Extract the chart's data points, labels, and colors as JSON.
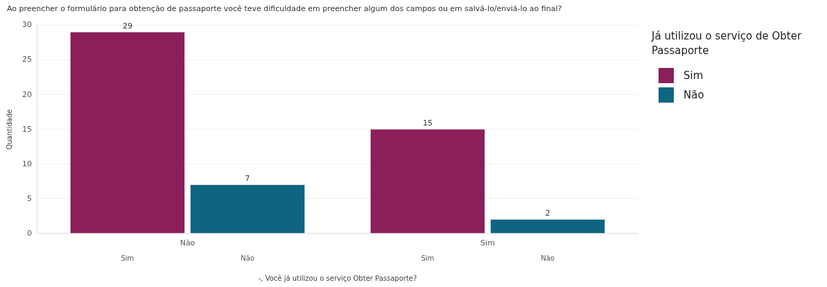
{
  "chart_data": {
    "type": "bar",
    "title": "Ao preencher o formulário para obtenção de passaporte você teve dificuldade em preencher algum dos campos ou em salvá-lo/enviá-lo ao final?",
    "xlabel": "-, Você já utilizou o serviço Obter Passaporte?",
    "ylabel": "Quantidade",
    "legend_title": "Já utilizou o serviço de Obter Passaporte",
    "categories": [
      "Não",
      "Sim"
    ],
    "series": [
      {
        "name": "Sim",
        "color": "#8a1f5a",
        "values": [
          29,
          15
        ]
      },
      {
        "name": "Não",
        "color": "#0e6582",
        "values": [
          7,
          2
        ]
      }
    ],
    "ylim": [
      0,
      30
    ],
    "yticks": [
      0,
      5,
      10,
      15,
      20,
      25,
      30
    ],
    "grid": "y",
    "legend": "top right",
    "data_labels": true
  }
}
